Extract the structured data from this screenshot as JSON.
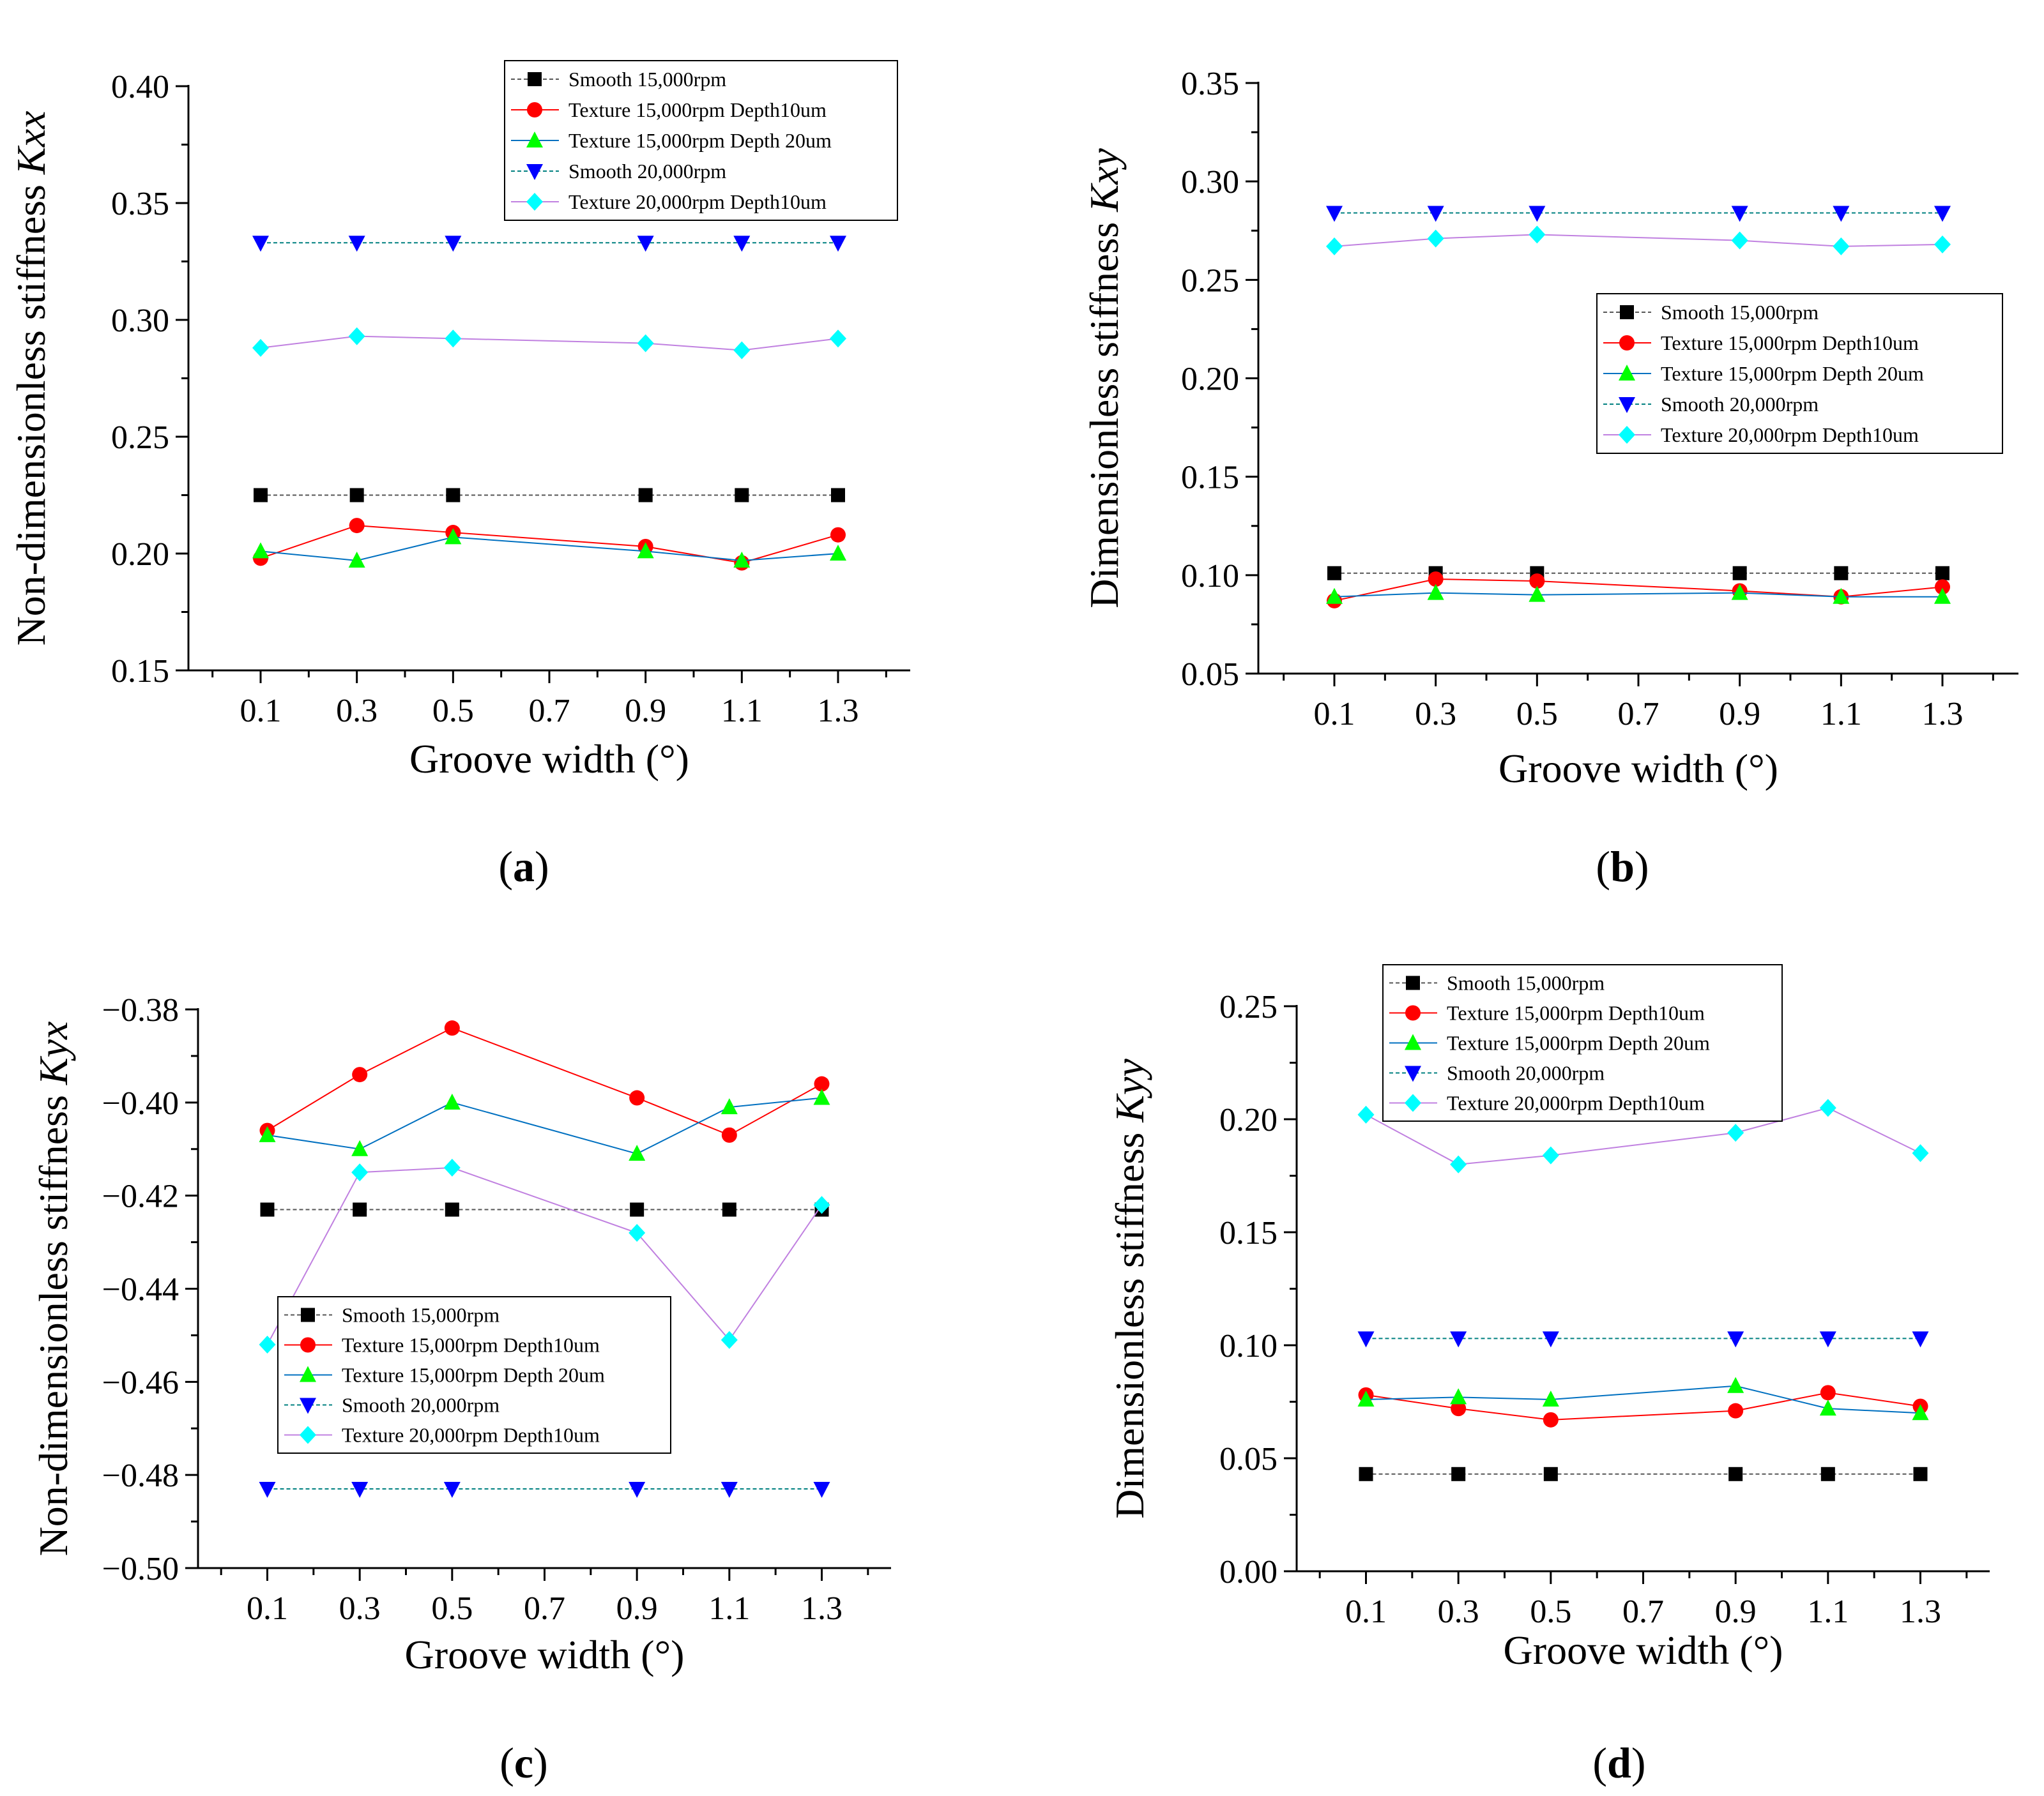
{
  "common": {
    "xlabel": "Groove width (°)",
    "series_names": [
      "Smooth 15,000rpm",
      "Texture 15,000rpm Depth10um",
      "Texture 15,000rpm Depth 20um",
      "Smooth 20,000rpm",
      "Texture 20,000rpm Depth10um"
    ]
  },
  "chart_data": [
    {
      "id": "a",
      "type": "line",
      "panel_label": "a",
      "ylabel_prefix": "Non-dimensionless stiffness ",
      "ylabel_var": "Kxx",
      "x_ticks": [
        "0.1",
        "0.3",
        "0.5",
        "0.7",
        "0.9",
        "1.1",
        "1.3"
      ],
      "y_ticks": [
        "0.15",
        "0.20",
        "0.25",
        "0.30",
        "0.35",
        "0.40"
      ],
      "xlim": [
        -0.05,
        1.45
      ],
      "ylim": [
        0.15,
        0.4
      ],
      "x": [
        0.1,
        0.3,
        0.5,
        0.9,
        1.1,
        1.3
      ],
      "legend_position": "top-right",
      "series": [
        {
          "name": "Smooth 15,000rpm",
          "values": [
            0.225,
            0.225,
            0.225,
            0.225,
            0.225,
            0.225
          ]
        },
        {
          "name": "Texture 15,000rpm Depth10um",
          "values": [
            0.198,
            0.212,
            0.209,
            0.203,
            0.196,
            0.208
          ]
        },
        {
          "name": "Texture 15,000rpm Depth 20um",
          "values": [
            0.201,
            0.197,
            0.207,
            0.201,
            0.197,
            0.2
          ]
        },
        {
          "name": "Smooth 20,000rpm",
          "values": [
            0.333,
            0.333,
            0.333,
            0.333,
            0.333,
            0.333
          ]
        },
        {
          "name": "Texture 20,000rpm Depth10um",
          "values": [
            0.288,
            0.293,
            0.292,
            0.29,
            0.287,
            0.292
          ]
        }
      ]
    },
    {
      "id": "b",
      "type": "line",
      "panel_label": "b",
      "ylabel_prefix": "Dimensionless stiffness ",
      "ylabel_var": "Kxy",
      "x_ticks": [
        "0.1",
        "0.3",
        "0.5",
        "0.7",
        "0.9",
        "1.1",
        "1.3"
      ],
      "y_ticks": [
        "0.05",
        "0.10",
        "0.15",
        "0.20",
        "0.25",
        "0.30",
        "0.35"
      ],
      "xlim": [
        -0.05,
        1.45
      ],
      "ylim": [
        0.05,
        0.35
      ],
      "x": [
        0.1,
        0.3,
        0.5,
        0.9,
        1.1,
        1.3
      ],
      "legend_position": "middle-right",
      "series": [
        {
          "name": "Smooth 15,000rpm",
          "values": [
            0.101,
            0.101,
            0.101,
            0.101,
            0.101,
            0.101
          ]
        },
        {
          "name": "Texture 15,000rpm Depth10um",
          "values": [
            0.087,
            0.098,
            0.097,
            0.092,
            0.089,
            0.094
          ]
        },
        {
          "name": "Texture 15,000rpm Depth 20um",
          "values": [
            0.089,
            0.091,
            0.09,
            0.091,
            0.089,
            0.089
          ]
        },
        {
          "name": "Smooth 20,000rpm",
          "values": [
            0.284,
            0.284,
            0.284,
            0.284,
            0.284,
            0.284
          ]
        },
        {
          "name": "Texture 20,000rpm Depth10um",
          "values": [
            0.267,
            0.271,
            0.273,
            0.27,
            0.267,
            0.268
          ]
        }
      ]
    },
    {
      "id": "c",
      "type": "line",
      "panel_label": "c",
      "ylabel_prefix": "Non-dimensionless stiffness ",
      "ylabel_var": "Kyx",
      "x_ticks": [
        "0.1",
        "0.3",
        "0.5",
        "0.7",
        "0.9",
        "1.1",
        "1.3"
      ],
      "y_ticks": [
        "−0.50",
        "−0.48",
        "−0.46",
        "−0.44",
        "−0.42",
        "−0.40",
        "−0.38"
      ],
      "xlim": [
        -0.05,
        1.45
      ],
      "ylim": [
        -0.5,
        -0.38
      ],
      "x": [
        0.1,
        0.3,
        0.5,
        0.9,
        1.1,
        1.3
      ],
      "legend_position": "bottom-center",
      "series": [
        {
          "name": "Smooth 15,000rpm",
          "values": [
            -0.423,
            -0.423,
            -0.423,
            -0.423,
            -0.423,
            -0.423
          ]
        },
        {
          "name": "Texture 15,000rpm Depth10um",
          "values": [
            -0.406,
            -0.394,
            -0.384,
            -0.399,
            -0.407,
            -0.396
          ]
        },
        {
          "name": "Texture 15,000rpm Depth 20um",
          "values": [
            -0.407,
            -0.41,
            -0.4,
            -0.411,
            -0.401,
            -0.399
          ]
        },
        {
          "name": "Smooth 20,000rpm",
          "values": [
            -0.483,
            -0.483,
            -0.483,
            -0.483,
            -0.483,
            -0.483
          ]
        },
        {
          "name": "Texture 20,000rpm Depth10um",
          "values": [
            -0.452,
            -0.415,
            -0.414,
            -0.428,
            -0.451,
            -0.422
          ]
        }
      ]
    },
    {
      "id": "d",
      "type": "line",
      "panel_label": "d",
      "ylabel_prefix": "Dimensionless stiffness ",
      "ylabel_var": "Kyy",
      "x_ticks": [
        "0.1",
        "0.3",
        "0.5",
        "0.7",
        "0.9",
        "1.1",
        "1.3"
      ],
      "y_ticks": [
        "0.00",
        "0.05",
        "0.10",
        "0.15",
        "0.20",
        "0.25"
      ],
      "xlim": [
        -0.05,
        1.45
      ],
      "ylim": [
        0.0,
        0.25
      ],
      "x": [
        0.1,
        0.3,
        0.5,
        0.9,
        1.1,
        1.3
      ],
      "legend_position": "top-left",
      "series": [
        {
          "name": "Smooth 15,000rpm",
          "values": [
            0.043,
            0.043,
            0.043,
            0.043,
            0.043,
            0.043
          ]
        },
        {
          "name": "Texture 15,000rpm Depth10um",
          "values": [
            0.078,
            0.072,
            0.067,
            0.071,
            0.079,
            0.073
          ]
        },
        {
          "name": "Texture 15,000rpm Depth 20um",
          "values": [
            0.076,
            0.077,
            0.076,
            0.082,
            0.072,
            0.07
          ]
        },
        {
          "name": "Smooth 20,000rpm",
          "values": [
            0.103,
            0.103,
            0.103,
            0.103,
            0.103,
            0.103
          ]
        },
        {
          "name": "Texture 20,000rpm Depth10um",
          "values": [
            0.202,
            0.18,
            0.184,
            0.194,
            0.205,
            0.185
          ]
        }
      ]
    }
  ],
  "series_styles": [
    {
      "marker": "square",
      "marker_color": "#000000",
      "line_color": "#555555",
      "dashed": true
    },
    {
      "marker": "circle",
      "marker_color": "#ff0000",
      "line_color": "#ff0000",
      "dashed": false
    },
    {
      "marker": "triangle-up",
      "marker_color": "#00ff00",
      "line_color": "#0070c0",
      "dashed": false
    },
    {
      "marker": "triangle-down",
      "marker_color": "#0000ff",
      "line_color": "#008080",
      "dashed": true
    },
    {
      "marker": "diamond",
      "marker_color": "#00ffff",
      "line_color": "#c080e0",
      "dashed": false
    }
  ]
}
